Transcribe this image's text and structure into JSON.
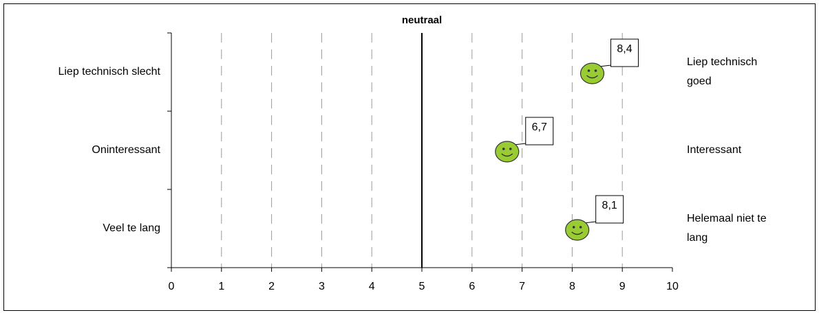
{
  "chart_data": {
    "type": "scatter",
    "title": "neutraal",
    "reference_x": 5,
    "categories": [
      "Liep technisch slecht",
      "Oninteressant",
      "Veel te lang"
    ],
    "right_labels": [
      [
        "Liep technisch",
        "goed"
      ],
      [
        "Interessant"
      ],
      [
        "Helemaal niet te",
        "lang"
      ]
    ],
    "values": [
      8.4,
      6.7,
      8.1
    ],
    "value_labels": [
      "8,4",
      "6,7",
      "8,1"
    ],
    "color": "#99cc33",
    "xlim": [
      0,
      10
    ],
    "xticks": [
      0,
      1,
      2,
      3,
      4,
      5,
      6,
      7,
      8,
      9,
      10
    ],
    "grid": true
  }
}
